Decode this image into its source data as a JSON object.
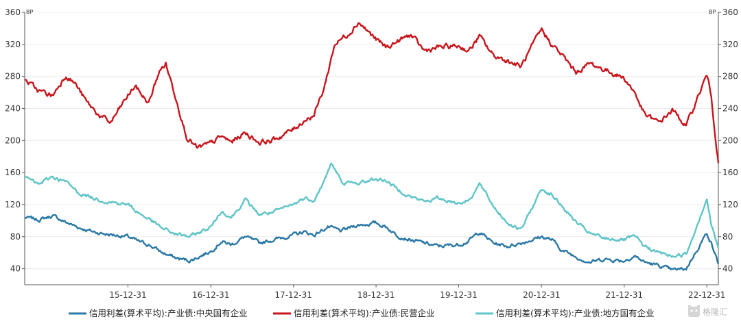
{
  "chart_data": {
    "type": "line",
    "y_unit_left": "BP",
    "y_unit_right": "BP",
    "ylim": [
      20,
      360
    ],
    "yticks": [
      40,
      80,
      120,
      160,
      200,
      240,
      280,
      320,
      360
    ],
    "xlim": [
      "2014-10-01",
      "2023-02-20"
    ],
    "x_ticks": [
      {
        "date": "2015-12-31",
        "label": "15-12-31"
      },
      {
        "date": "2016-12-31",
        "label": "16-12-31"
      },
      {
        "date": "2017-12-31",
        "label": "17-12-31"
      },
      {
        "date": "2018-12-31",
        "label": "18-12-31"
      },
      {
        "date": "2019-12-31",
        "label": "19-12-31"
      },
      {
        "date": "2020-12-31",
        "label": "20-12-31"
      },
      {
        "date": "2021-12-31",
        "label": "21-12-31"
      },
      {
        "date": "2022-12-31",
        "label": "22-12-31"
      }
    ],
    "grid": "horizontal",
    "legend_position": "bottom",
    "series": [
      {
        "name": "信用利差(算术平均):产业债:中央国有企业",
        "color": "#2a78a5",
        "points": [
          [
            "2014-10-01",
            104
          ],
          [
            "2014-12-01",
            101
          ],
          [
            "2015-02-01",
            106
          ],
          [
            "2015-04-01",
            98
          ],
          [
            "2015-06-01",
            91
          ],
          [
            "2015-08-01",
            86
          ],
          [
            "2015-10-01",
            83
          ],
          [
            "2015-12-31",
            80
          ],
          [
            "2016-02-15",
            74
          ],
          [
            "2016-04-01",
            70
          ],
          [
            "2016-06-01",
            60
          ],
          [
            "2016-08-01",
            53
          ],
          [
            "2016-10-01",
            50
          ],
          [
            "2016-12-31",
            62
          ],
          [
            "2017-02-15",
            74
          ],
          [
            "2017-04-01",
            70
          ],
          [
            "2017-06-01",
            80
          ],
          [
            "2017-08-01",
            72
          ],
          [
            "2017-10-01",
            76
          ],
          [
            "2017-12-31",
            82
          ],
          [
            "2018-02-15",
            86
          ],
          [
            "2018-04-01",
            82
          ],
          [
            "2018-06-01",
            92
          ],
          [
            "2018-08-01",
            87
          ],
          [
            "2018-10-01",
            94
          ],
          [
            "2018-12-31",
            97
          ],
          [
            "2019-02-15",
            92
          ],
          [
            "2019-04-01",
            82
          ],
          [
            "2019-06-01",
            76
          ],
          [
            "2019-08-01",
            72
          ],
          [
            "2019-10-01",
            68
          ],
          [
            "2019-12-31",
            70
          ],
          [
            "2020-02-15",
            75
          ],
          [
            "2020-04-01",
            86
          ],
          [
            "2020-06-01",
            72
          ],
          [
            "2020-08-01",
            68
          ],
          [
            "2020-10-01",
            72
          ],
          [
            "2020-12-31",
            80
          ],
          [
            "2021-02-15",
            76
          ],
          [
            "2021-04-01",
            63
          ],
          [
            "2021-06-01",
            55
          ],
          [
            "2021-08-01",
            48
          ],
          [
            "2021-10-01",
            52
          ],
          [
            "2021-12-31",
            50
          ],
          [
            "2022-02-15",
            56
          ],
          [
            "2022-04-01",
            48
          ],
          [
            "2022-06-01",
            44
          ],
          [
            "2022-08-01",
            38
          ],
          [
            "2022-10-01",
            40
          ],
          [
            "2022-12-31",
            85
          ],
          [
            "2023-01-20",
            72
          ],
          [
            "2023-02-20",
            46
          ]
        ]
      },
      {
        "name": "信用利差(算术平均):产业债:民营企业",
        "color": "#c8141b",
        "points": [
          [
            "2014-10-01",
            276
          ],
          [
            "2014-12-01",
            262
          ],
          [
            "2015-02-01",
            256
          ],
          [
            "2015-04-01",
            282
          ],
          [
            "2015-05-15",
            270
          ],
          [
            "2015-07-01",
            248
          ],
          [
            "2015-09-01",
            230
          ],
          [
            "2015-10-15",
            222
          ],
          [
            "2015-12-31",
            256
          ],
          [
            "2016-02-01",
            268
          ],
          [
            "2016-04-01",
            246
          ],
          [
            "2016-05-15",
            285
          ],
          [
            "2016-06-15",
            296
          ],
          [
            "2016-08-01",
            252
          ],
          [
            "2016-09-15",
            205
          ],
          [
            "2016-11-01",
            190
          ],
          [
            "2016-12-31",
            196
          ],
          [
            "2017-02-15",
            205
          ],
          [
            "2017-04-01",
            198
          ],
          [
            "2017-06-01",
            210
          ],
          [
            "2017-08-01",
            198
          ],
          [
            "2017-10-01",
            200
          ],
          [
            "2017-12-31",
            214
          ],
          [
            "2018-02-15",
            225
          ],
          [
            "2018-04-01",
            232
          ],
          [
            "2018-05-15",
            265
          ],
          [
            "2018-07-01",
            320
          ],
          [
            "2018-09-01",
            334
          ],
          [
            "2018-10-15",
            348
          ],
          [
            "2018-12-31",
            326
          ],
          [
            "2019-02-15",
            316
          ],
          [
            "2019-04-01",
            323
          ],
          [
            "2019-06-01",
            332
          ],
          [
            "2019-08-01",
            312
          ],
          [
            "2019-10-01",
            316
          ],
          [
            "2019-12-31",
            318
          ],
          [
            "2020-02-15",
            312
          ],
          [
            "2020-04-01",
            330
          ],
          [
            "2020-06-01",
            306
          ],
          [
            "2020-08-01",
            300
          ],
          [
            "2020-10-01",
            292
          ],
          [
            "2020-12-31",
            338
          ],
          [
            "2021-02-15",
            320
          ],
          [
            "2021-04-01",
            306
          ],
          [
            "2021-06-01",
            285
          ],
          [
            "2021-08-01",
            296
          ],
          [
            "2021-10-01",
            289
          ],
          [
            "2021-12-31",
            278
          ],
          [
            "2022-02-15",
            260
          ],
          [
            "2022-04-01",
            232
          ],
          [
            "2022-06-01",
            222
          ],
          [
            "2022-08-01",
            238
          ],
          [
            "2022-10-01",
            218
          ],
          [
            "2022-12-31",
            282
          ],
          [
            "2023-01-20",
            255
          ],
          [
            "2023-02-20",
            172
          ]
        ]
      },
      {
        "name": "信用利差(算术平均):产业债:地方国有企业",
        "color": "#5ec4c7",
        "points": [
          [
            "2014-10-01",
            155
          ],
          [
            "2014-12-01",
            145
          ],
          [
            "2015-02-01",
            155
          ],
          [
            "2015-04-01",
            148
          ],
          [
            "2015-06-01",
            134
          ],
          [
            "2015-08-01",
            128
          ],
          [
            "2015-10-01",
            124
          ],
          [
            "2015-12-31",
            120
          ],
          [
            "2016-02-15",
            110
          ],
          [
            "2016-04-01",
            102
          ],
          [
            "2016-06-01",
            90
          ],
          [
            "2016-08-01",
            83
          ],
          [
            "2016-10-01",
            80
          ],
          [
            "2016-12-31",
            92
          ],
          [
            "2017-02-15",
            112
          ],
          [
            "2017-04-01",
            104
          ],
          [
            "2017-06-01",
            126
          ],
          [
            "2017-08-01",
            108
          ],
          [
            "2017-10-01",
            110
          ],
          [
            "2017-12-31",
            120
          ],
          [
            "2018-02-15",
            128
          ],
          [
            "2018-04-01",
            126
          ],
          [
            "2018-05-15",
            148
          ],
          [
            "2018-06-15",
            172
          ],
          [
            "2018-08-01",
            148
          ],
          [
            "2018-10-01",
            146
          ],
          [
            "2018-12-31",
            152
          ],
          [
            "2019-02-15",
            150
          ],
          [
            "2019-04-01",
            140
          ],
          [
            "2019-06-01",
            130
          ],
          [
            "2019-08-01",
            124
          ],
          [
            "2019-10-01",
            128
          ],
          [
            "2019-12-31",
            122
          ],
          [
            "2020-02-15",
            126
          ],
          [
            "2020-04-01",
            146
          ],
          [
            "2020-06-01",
            118
          ],
          [
            "2020-08-01",
            98
          ],
          [
            "2020-10-01",
            88
          ],
          [
            "2020-12-31",
            140
          ],
          [
            "2021-02-15",
            132
          ],
          [
            "2021-04-01",
            118
          ],
          [
            "2021-06-01",
            98
          ],
          [
            "2021-08-01",
            84
          ],
          [
            "2021-10-01",
            78
          ],
          [
            "2021-12-31",
            76
          ],
          [
            "2022-02-15",
            80
          ],
          [
            "2022-04-01",
            68
          ],
          [
            "2022-06-01",
            60
          ],
          [
            "2022-08-01",
            56
          ],
          [
            "2022-10-01",
            58
          ],
          [
            "2022-12-31",
            128
          ],
          [
            "2023-01-20",
            94
          ],
          [
            "2023-02-20",
            66
          ]
        ]
      }
    ]
  },
  "watermark": "格隆汇",
  "icons": {
    "watermark_logo": "bear-logo-icon"
  }
}
